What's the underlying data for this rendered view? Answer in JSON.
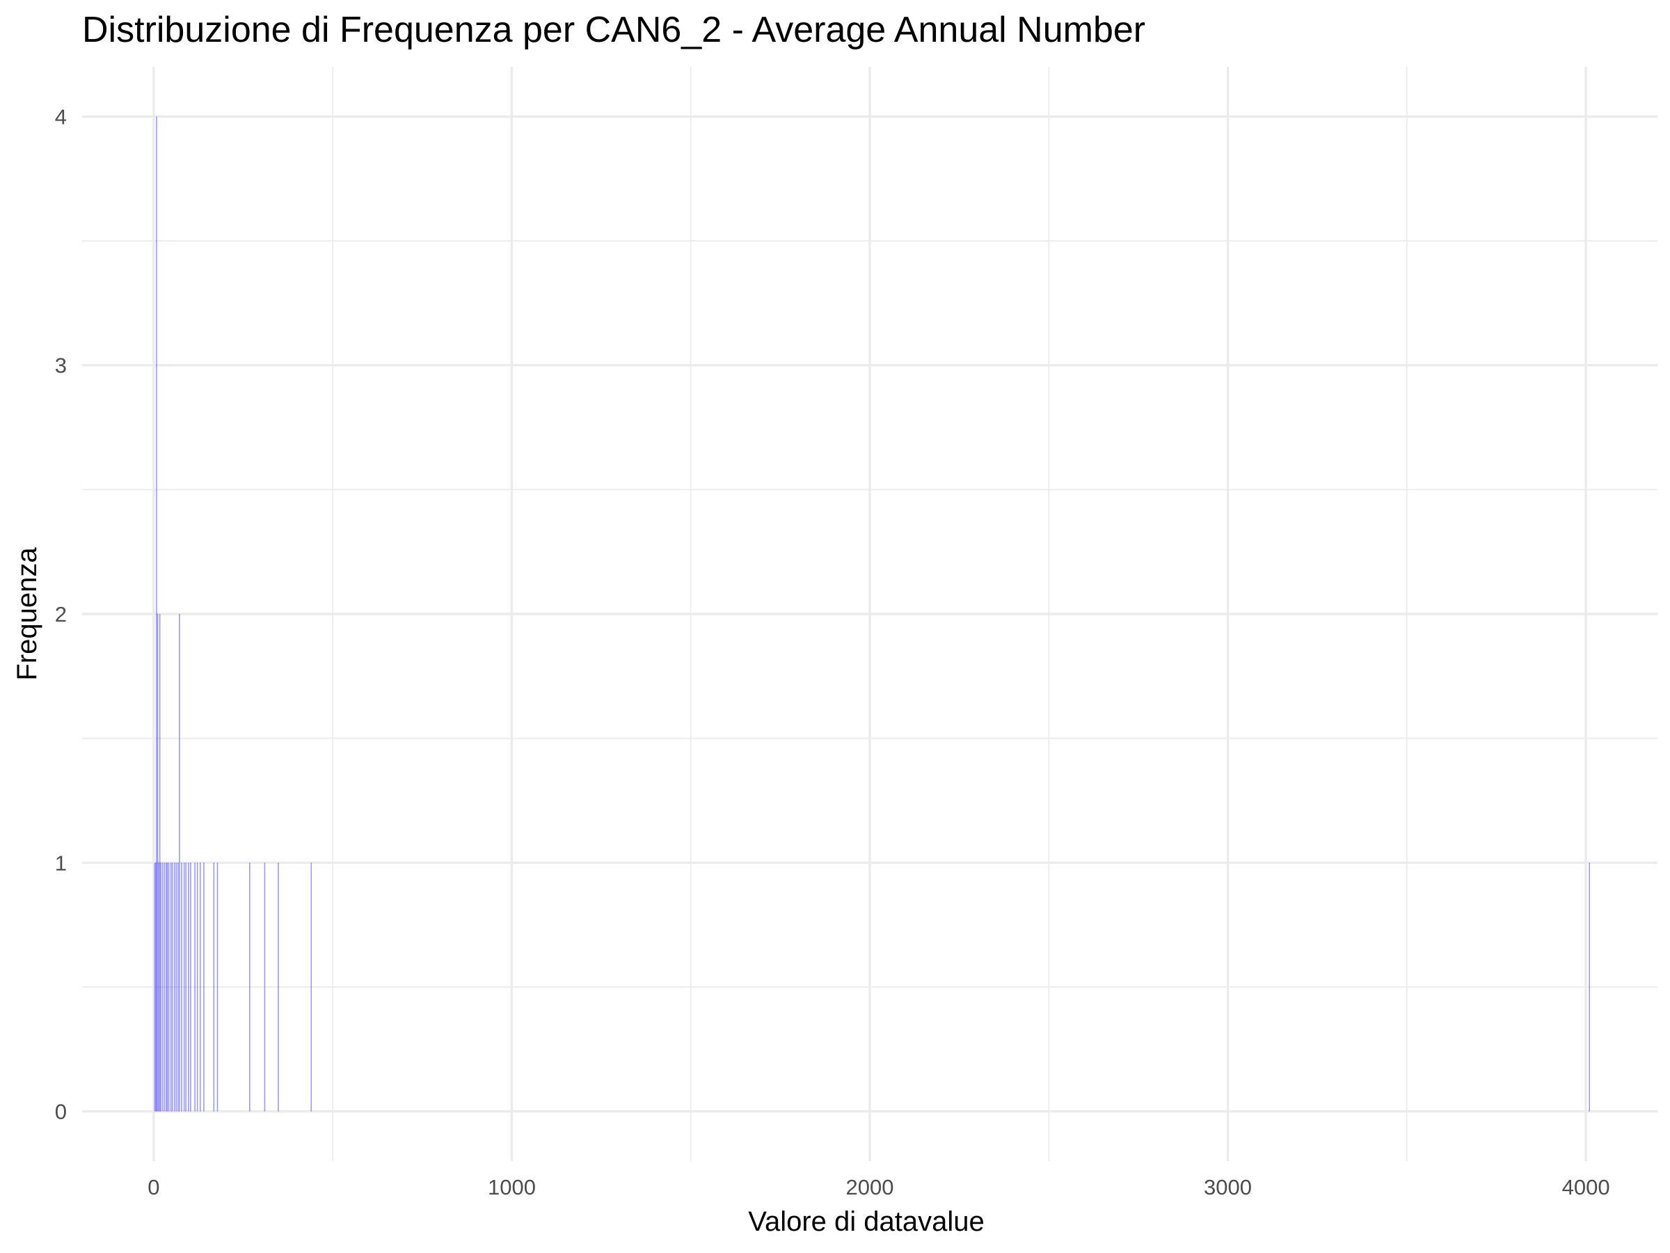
{
  "chart_data": {
    "type": "bar",
    "title": "Distribuzione di Frequenza per CAN6_2 - Average Annual Number",
    "xlabel": "Valore di datavalue",
    "ylabel": "Frequenza",
    "xlim": [
      -200,
      4200
    ],
    "ylim": [
      -0.2,
      4.2
    ],
    "x_ticks": [
      0,
      1000,
      2000,
      3000,
      4000
    ],
    "y_ticks": [
      0,
      1,
      2,
      3,
      4
    ],
    "grid": true,
    "bar_color": "#0000ff",
    "bar_opacity": 0.4,
    "bin_width": 1,
    "bars": [
      {
        "x": 3,
        "count": 1
      },
      {
        "x": 6,
        "count": 1
      },
      {
        "x": 8,
        "count": 4
      },
      {
        "x": 11,
        "count": 2
      },
      {
        "x": 14,
        "count": 1
      },
      {
        "x": 17,
        "count": 2
      },
      {
        "x": 20,
        "count": 1
      },
      {
        "x": 25,
        "count": 1
      },
      {
        "x": 30,
        "count": 1
      },
      {
        "x": 35,
        "count": 1
      },
      {
        "x": 38,
        "count": 1
      },
      {
        "x": 42,
        "count": 1
      },
      {
        "x": 48,
        "count": 1
      },
      {
        "x": 52,
        "count": 1
      },
      {
        "x": 58,
        "count": 1
      },
      {
        "x": 63,
        "count": 1
      },
      {
        "x": 68,
        "count": 1
      },
      {
        "x": 72,
        "count": 2
      },
      {
        "x": 78,
        "count": 1
      },
      {
        "x": 85,
        "count": 1
      },
      {
        "x": 90,
        "count": 1
      },
      {
        "x": 97,
        "count": 1
      },
      {
        "x": 103,
        "count": 1
      },
      {
        "x": 115,
        "count": 1
      },
      {
        "x": 122,
        "count": 1
      },
      {
        "x": 130,
        "count": 1
      },
      {
        "x": 140,
        "count": 1
      },
      {
        "x": 168,
        "count": 1
      },
      {
        "x": 178,
        "count": 1
      },
      {
        "x": 268,
        "count": 1
      },
      {
        "x": 310,
        "count": 1
      },
      {
        "x": 348,
        "count": 1
      },
      {
        "x": 440,
        "count": 1
      },
      {
        "x": 4010,
        "count": 1
      }
    ]
  }
}
